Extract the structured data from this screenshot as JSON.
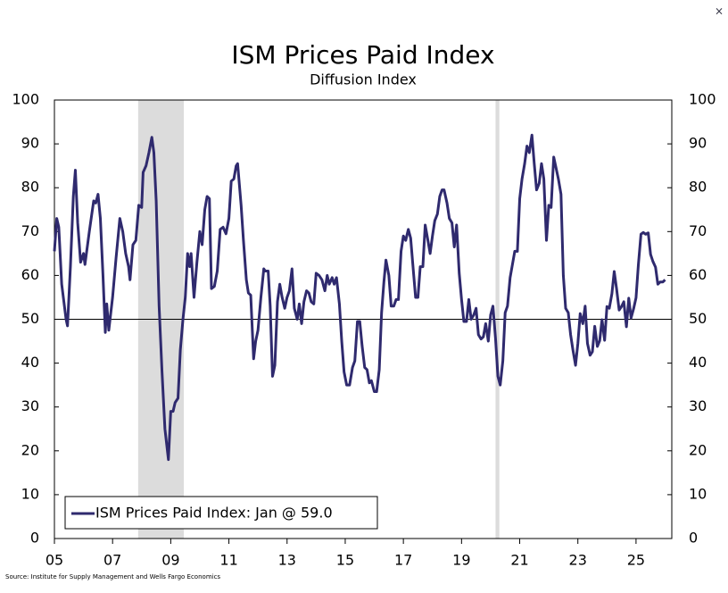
{
  "chart_data": {
    "type": "line",
    "title": "ISM Prices Paid Index",
    "subtitle": "Diffusion Index",
    "source": "Source: Institute for Supply Management and Wells Fargo Economics",
    "close_button": "×",
    "xlim": [
      2005,
      2026.23
    ],
    "xticks": [
      {
        "value": 2005,
        "label": "05"
      },
      {
        "value": 2007,
        "label": "07"
      },
      {
        "value": 2009,
        "label": "09"
      },
      {
        "value": 2011,
        "label": "11"
      },
      {
        "value": 2013,
        "label": "13"
      },
      {
        "value": 2015,
        "label": "15"
      },
      {
        "value": 2017,
        "label": "17"
      },
      {
        "value": 2019,
        "label": "19"
      },
      {
        "value": 2021,
        "label": "21"
      },
      {
        "value": 2023,
        "label": "23"
      },
      {
        "value": 2025,
        "label": "25"
      }
    ],
    "ylim": [
      0,
      100
    ],
    "yticks": [
      0,
      10,
      20,
      30,
      40,
      50,
      60,
      70,
      80,
      90,
      100
    ],
    "y2lim": [
      0,
      100
    ],
    "y2ticks": [
      0,
      10,
      20,
      30,
      40,
      50,
      60,
      70,
      80,
      90,
      100
    ],
    "reference_line": 50,
    "shaded_periods": [
      [
        2007.88,
        2009.45
      ],
      [
        2020.17,
        2020.3
      ]
    ],
    "shade_color": "#dcdcdc",
    "legend": "lower left",
    "x": [
      2005.0,
      2005.08,
      2005.15,
      2005.25,
      2005.4,
      2005.45,
      2005.55,
      2005.65,
      2005.72,
      2005.8,
      2005.9,
      2006.0,
      2006.05,
      2006.2,
      2006.35,
      2006.42,
      2006.5,
      2006.58,
      2006.67,
      2006.75,
      2006.8,
      2006.87,
      2007.0,
      2007.12,
      2007.25,
      2007.35,
      2007.45,
      2007.55,
      2007.6,
      2007.7,
      2007.8,
      2007.9,
      2008.0,
      2008.05,
      2008.15,
      2008.25,
      2008.35,
      2008.42,
      2008.5,
      2008.6,
      2008.7,
      2008.8,
      2008.92,
      2009.0,
      2009.08,
      2009.15,
      2009.25,
      2009.33,
      2009.42,
      2009.5,
      2009.58,
      2009.65,
      2009.7,
      2009.8,
      2009.9,
      2010.0,
      2010.08,
      2010.17,
      2010.25,
      2010.33,
      2010.4,
      2010.5,
      2010.6,
      2010.7,
      2010.8,
      2010.9,
      2011.0,
      2011.08,
      2011.17,
      2011.25,
      2011.3,
      2011.42,
      2011.5,
      2011.6,
      2011.67,
      2011.75,
      2011.85,
      2011.92,
      2012.0,
      2012.1,
      2012.2,
      2012.25,
      2012.35,
      2012.42,
      2012.5,
      2012.58,
      2012.67,
      2012.75,
      2012.83,
      2012.92,
      2013.0,
      2013.08,
      2013.17,
      2013.25,
      2013.35,
      2013.42,
      2013.5,
      2013.58,
      2013.67,
      2013.75,
      2013.83,
      2013.92,
      2014.0,
      2014.1,
      2014.2,
      2014.3,
      2014.38,
      2014.45,
      2014.55,
      2014.62,
      2014.7,
      2014.8,
      2014.88,
      2014.96,
      2015.05,
      2015.15,
      2015.25,
      2015.33,
      2015.42,
      2015.5,
      2015.58,
      2015.67,
      2015.75,
      2015.83,
      2015.9,
      2016.0,
      2016.08,
      2016.17,
      2016.25,
      2016.33,
      2016.4,
      2016.5,
      2016.58,
      2016.67,
      2016.75,
      2016.83,
      2016.92,
      2017.0,
      2017.08,
      2017.17,
      2017.25,
      2017.35,
      2017.42,
      2017.5,
      2017.58,
      2017.67,
      2017.75,
      2017.83,
      2017.92,
      2018.0,
      2018.08,
      2018.17,
      2018.25,
      2018.33,
      2018.4,
      2018.5,
      2018.58,
      2018.67,
      2018.75,
      2018.83,
      2018.92,
      2019.0,
      2019.08,
      2019.17,
      2019.25,
      2019.33,
      2019.42,
      2019.5,
      2019.58,
      2019.67,
      2019.75,
      2019.83,
      2019.92,
      2020.0,
      2020.08,
      2020.17,
      2020.25,
      2020.33,
      2020.42,
      2020.5,
      2020.58,
      2020.67,
      2020.75,
      2020.83,
      2020.92,
      2021.0,
      2021.08,
      2021.17,
      2021.25,
      2021.33,
      2021.42,
      2021.5,
      2021.58,
      2021.67,
      2021.75,
      2021.83,
      2021.92,
      2022.0,
      2022.08,
      2022.17,
      2022.25,
      2022.33,
      2022.42,
      2022.5,
      2022.58,
      2022.67,
      2022.75,
      2022.83,
      2022.92,
      2023.0,
      2023.08,
      2023.17,
      2023.25,
      2023.33,
      2023.42,
      2023.5,
      2023.58,
      2023.67,
      2023.75,
      2023.83,
      2023.92,
      2024.0,
      2024.08,
      2024.17,
      2024.25,
      2024.33,
      2024.42,
      2024.5,
      2024.58,
      2024.67,
      2024.75,
      2024.83,
      2024.92,
      2025.0,
      2025.08,
      2025.17,
      2025.25,
      2025.33,
      2025.42,
      2025.5,
      2025.58,
      2025.67,
      2025.75,
      2025.83,
      2025.92,
      2026.0
    ],
    "series": [
      {
        "name": "ISM Prices Paid Index: Jan @ 59.0",
        "color": "#2f2a6e",
        "values": [
          65.5,
          73,
          71,
          58,
          50,
          48.5,
          62,
          78,
          84,
          72,
          63,
          65,
          62.5,
          70,
          77,
          76.5,
          78.5,
          73,
          60,
          47,
          53.5,
          47.5,
          55,
          64,
          73,
          70,
          65,
          62,
          59,
          67,
          68,
          76,
          75.5,
          83.5,
          85,
          88,
          91.5,
          88,
          77,
          53,
          38,
          25,
          18,
          29,
          29,
          31,
          32,
          43,
          50,
          55,
          65,
          62,
          65,
          55,
          63,
          70,
          67,
          75,
          78,
          77.5,
          57,
          57.5,
          61,
          70.5,
          71,
          69.5,
          73,
          81.5,
          82,
          85,
          85.5,
          76,
          68,
          59,
          56,
          55.5,
          41,
          45,
          47.5,
          55,
          61.5,
          61,
          61,
          53,
          37,
          39.5,
          54,
          58,
          55,
          52.5,
          55,
          56.5,
          61.5,
          52.5,
          50,
          53.5,
          49,
          54,
          56.5,
          56,
          54,
          53.5,
          60.5,
          60,
          59,
          56.5,
          60,
          58,
          59.5,
          58,
          59.5,
          53.5,
          45,
          38,
          35,
          35,
          39,
          40.5,
          49.5,
          49.5,
          44,
          39,
          38.5,
          35.5,
          36,
          33.5,
          33.5,
          38.5,
          51.5,
          58.5,
          63.5,
          60,
          53,
          53,
          54.5,
          54.5,
          65.5,
          69,
          68,
          70.5,
          68.5,
          60.5,
          55,
          55,
          62,
          62,
          71.5,
          68.5,
          65,
          69,
          72.5,
          74,
          78,
          79.5,
          79.5,
          76.5,
          73,
          72,
          66.5,
          71.5,
          60.5,
          54.5,
          49.5,
          49.5,
          54.5,
          50,
          51,
          52.5,
          46.5,
          45.5,
          46,
          49,
          45,
          51,
          53,
          45.5,
          37,
          35,
          40.5,
          51.5,
          53,
          59.5,
          62.5,
          65.5,
          65.5,
          77.5,
          82,
          85.5,
          89.5,
          88,
          92,
          85.5,
          79.5,
          81,
          85.5,
          82,
          68,
          76,
          75.5,
          87,
          84.5,
          82,
          78.5,
          60,
          52.5,
          51.5,
          46.5,
          43,
          39.5,
          44.5,
          51.3,
          49,
          53,
          44.5,
          41.8,
          42.6,
          48.4,
          43.8,
          45.1,
          49.9,
          45.2,
          52.9,
          52.5,
          55.8,
          60.9,
          57,
          52.1,
          52.9,
          54,
          48.3,
          54.8,
          50.3,
          52.5,
          54.9,
          62.4,
          69.4,
          69.8,
          69.4,
          69.7,
          64.8,
          63.2,
          61.9,
          58,
          58.5,
          58.5,
          59
        ]
      }
    ]
  }
}
